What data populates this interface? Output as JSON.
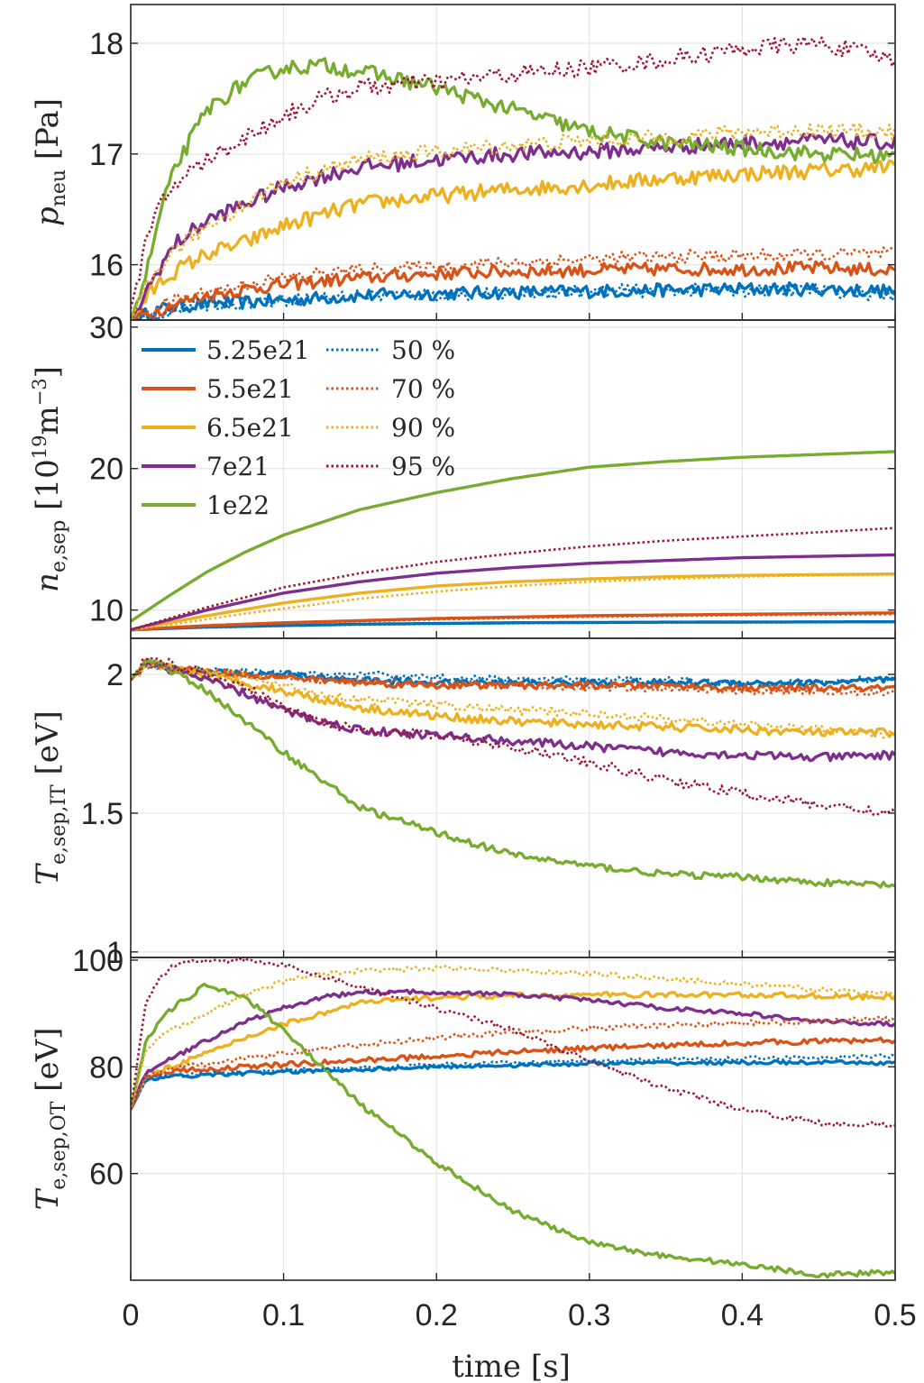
{
  "chart_data": [
    {
      "type": "line",
      "panel_id": "p_neu",
      "ylabel_main": "p",
      "ylabel_sub": "neu",
      "ylabel_unit": "[Pa]",
      "xlim": [
        0,
        0.5
      ],
      "ylim": [
        15.5,
        18.35
      ],
      "yticks": [
        16,
        17,
        18
      ],
      "x": [
        0,
        0.01,
        0.02,
        0.03,
        0.05,
        0.075,
        0.1,
        0.125,
        0.15,
        0.2,
        0.25,
        0.3,
        0.35,
        0.4,
        0.45,
        0.5
      ],
      "series": [
        {
          "name": "5.25e21",
          "color": "#0072BD",
          "style": "solid",
          "noise": 0.06,
          "values": [
            15.5,
            15.55,
            15.6,
            15.62,
            15.65,
            15.66,
            15.68,
            15.7,
            15.72,
            15.74,
            15.75,
            15.76,
            15.77,
            15.78,
            15.78,
            15.76
          ]
        },
        {
          "name": "5.5e21",
          "color": "#D95319",
          "style": "solid",
          "noise": 0.06,
          "values": [
            15.5,
            15.55,
            15.6,
            15.65,
            15.72,
            15.78,
            15.82,
            15.85,
            15.88,
            15.92,
            15.94,
            15.95,
            15.96,
            15.96,
            15.97,
            15.95
          ]
        },
        {
          "name": "6.5e21",
          "color": "#EDB120",
          "style": "solid",
          "noise": 0.07,
          "values": [
            15.5,
            15.7,
            15.85,
            15.95,
            16.1,
            16.2,
            16.35,
            16.45,
            16.55,
            16.62,
            16.68,
            16.72,
            16.78,
            16.82,
            16.85,
            16.88
          ]
        },
        {
          "name": "7e21",
          "color": "#7E2F8E",
          "style": "solid",
          "noise": 0.07,
          "values": [
            15.5,
            15.75,
            16.0,
            16.2,
            16.4,
            16.55,
            16.7,
            16.8,
            16.88,
            16.95,
            17.0,
            17.02,
            17.06,
            17.1,
            17.12,
            17.1
          ]
        },
        {
          "name": "1e22",
          "color": "#77AC30",
          "style": "solid",
          "noise": 0.07,
          "values": [
            15.5,
            15.9,
            16.5,
            16.9,
            17.4,
            17.65,
            17.78,
            17.8,
            17.75,
            17.6,
            17.4,
            17.2,
            17.1,
            17.05,
            17.0,
            16.98
          ]
        },
        {
          "name": "50 %",
          "color": "#0072BD",
          "style": "dotted",
          "noise": 0.06,
          "values": [
            15.5,
            15.52,
            15.56,
            15.6,
            15.64,
            15.66,
            15.68,
            15.7,
            15.72,
            15.73,
            15.74,
            15.76,
            15.77,
            15.77,
            15.77,
            15.72
          ]
        },
        {
          "name": "70 %",
          "color": "#D95319",
          "style": "dotted",
          "noise": 0.06,
          "values": [
            15.5,
            15.57,
            15.63,
            15.68,
            15.75,
            15.82,
            15.88,
            15.92,
            15.95,
            15.98,
            16.02,
            16.05,
            16.07,
            16.08,
            16.09,
            16.1
          ]
        },
        {
          "name": "90 %",
          "color": "#EDB120",
          "style": "dotted",
          "noise": 0.07,
          "values": [
            15.5,
            15.8,
            16.0,
            16.15,
            16.35,
            16.55,
            16.75,
            16.85,
            16.95,
            17.02,
            17.08,
            17.12,
            17.15,
            17.2,
            17.22,
            17.2
          ]
        },
        {
          "name": "95 %",
          "color": "#A2142F",
          "style": "dotted",
          "noise": 0.08,
          "values": [
            15.6,
            16.2,
            16.55,
            16.75,
            16.95,
            17.15,
            17.35,
            17.5,
            17.6,
            17.65,
            17.72,
            17.78,
            17.85,
            17.95,
            18.0,
            17.85
          ]
        }
      ]
    },
    {
      "type": "line",
      "panel_id": "n_e_sep",
      "ylabel_main": "n",
      "ylabel_sub": "e,sep",
      "ylabel_unit": "[10",
      "ylabel_exp": "19",
      "ylabel_unit2": "m",
      "ylabel_exp2": "−3",
      "ylabel_close": "]",
      "xlim": [
        0,
        0.5
      ],
      "ylim": [
        8,
        30.5
      ],
      "yticks": [
        10,
        20,
        30
      ],
      "x": [
        0,
        0.025,
        0.05,
        0.075,
        0.1,
        0.15,
        0.2,
        0.25,
        0.3,
        0.35,
        0.4,
        0.45,
        0.5
      ],
      "series": [
        {
          "name": "5.25e21",
          "color": "#0072BD",
          "style": "solid",
          "noise": 0,
          "values": [
            8.6,
            8.7,
            8.8,
            8.85,
            8.9,
            9.0,
            9.05,
            9.1,
            9.12,
            9.14,
            9.15,
            9.16,
            9.17
          ]
        },
        {
          "name": "5.5e21",
          "color": "#D95319",
          "style": "solid",
          "noise": 0,
          "values": [
            8.6,
            8.75,
            8.9,
            9.0,
            9.1,
            9.25,
            9.4,
            9.5,
            9.6,
            9.65,
            9.7,
            9.75,
            9.8
          ]
        },
        {
          "name": "6.5e21",
          "color": "#EDB120",
          "style": "solid",
          "noise": 0,
          "values": [
            8.6,
            9.1,
            9.6,
            10.05,
            10.5,
            11.2,
            11.7,
            12.0,
            12.2,
            12.35,
            12.45,
            12.5,
            12.55
          ]
        },
        {
          "name": "7e21",
          "color": "#7E2F8E",
          "style": "solid",
          "noise": 0,
          "values": [
            8.6,
            9.3,
            10.0,
            10.6,
            11.2,
            12.0,
            12.6,
            13.0,
            13.3,
            13.5,
            13.7,
            13.8,
            13.9
          ]
        },
        {
          "name": "1e22",
          "color": "#77AC30",
          "style": "solid",
          "noise": 0,
          "values": [
            9.2,
            11.0,
            12.7,
            14.1,
            15.3,
            17.1,
            18.3,
            19.3,
            20.1,
            20.5,
            20.8,
            21.0,
            21.2
          ]
        },
        {
          "name": "50 %",
          "color": "#0072BD",
          "style": "dotted",
          "noise": 0,
          "values": [
            8.6,
            8.68,
            8.76,
            8.82,
            8.88,
            8.96,
            9.02,
            9.06,
            9.09,
            9.11,
            9.12,
            9.13,
            9.14
          ]
        },
        {
          "name": "70 %",
          "color": "#D95319",
          "style": "dotted",
          "noise": 0,
          "values": [
            8.6,
            8.72,
            8.85,
            8.95,
            9.05,
            9.2,
            9.33,
            9.43,
            9.52,
            9.58,
            9.63,
            9.67,
            9.7
          ]
        },
        {
          "name": "90 %",
          "color": "#EDB120",
          "style": "dotted",
          "noise": 0,
          "values": [
            8.6,
            8.95,
            9.35,
            9.75,
            10.1,
            10.8,
            11.3,
            11.7,
            12.0,
            12.2,
            12.35,
            12.45,
            12.5
          ]
        },
        {
          "name": "95 %",
          "color": "#A2142F",
          "style": "dotted",
          "noise": 0,
          "values": [
            8.6,
            9.4,
            10.2,
            10.9,
            11.6,
            12.6,
            13.4,
            14.0,
            14.5,
            14.9,
            15.2,
            15.5,
            15.8
          ]
        }
      ]
    },
    {
      "type": "line",
      "panel_id": "T_e_sep_IT",
      "ylabel_main": "T",
      "ylabel_sub": "e,sep,IT",
      "ylabel_unit": "[eV]",
      "xlim": [
        0,
        0.5
      ],
      "ylim": [
        0.98,
        2.13
      ],
      "yticks": [
        1,
        1.5,
        2
      ],
      "x": [
        0,
        0.01,
        0.02,
        0.03,
        0.05,
        0.075,
        0.1,
        0.125,
        0.15,
        0.2,
        0.25,
        0.3,
        0.35,
        0.4,
        0.45,
        0.5
      ],
      "series": [
        {
          "name": "5.25e21",
          "color": "#0072BD",
          "style": "solid",
          "noise": 0.012,
          "values": [
            1.98,
            2.04,
            2.03,
            2.02,
            2.01,
            2.0,
            2.0,
            1.99,
            1.98,
            1.97,
            1.97,
            1.97,
            1.97,
            1.97,
            1.97,
            1.98
          ]
        },
        {
          "name": "5.5e21",
          "color": "#D95319",
          "style": "solid",
          "noise": 0.012,
          "values": [
            1.98,
            2.04,
            2.03,
            2.02,
            2.01,
            2.0,
            1.99,
            1.98,
            1.97,
            1.96,
            1.96,
            1.96,
            1.96,
            1.95,
            1.95,
            1.95
          ]
        },
        {
          "name": "6.5e21",
          "color": "#EDB120",
          "style": "solid",
          "noise": 0.015,
          "values": [
            1.98,
            2.04,
            2.03,
            2.02,
            2.0,
            1.97,
            1.94,
            1.91,
            1.88,
            1.85,
            1.83,
            1.82,
            1.81,
            1.8,
            1.79,
            1.79
          ]
        },
        {
          "name": "7e21",
          "color": "#7E2F8E",
          "style": "solid",
          "noise": 0.015,
          "values": [
            1.98,
            2.04,
            2.03,
            2.01,
            1.98,
            1.93,
            1.87,
            1.83,
            1.8,
            1.78,
            1.76,
            1.74,
            1.72,
            1.71,
            1.7,
            1.71
          ]
        },
        {
          "name": "1e22",
          "color": "#77AC30",
          "style": "solid",
          "noise": 0.012,
          "values": [
            1.98,
            2.05,
            2.04,
            2.0,
            1.94,
            1.83,
            1.72,
            1.62,
            1.52,
            1.43,
            1.35,
            1.31,
            1.28,
            1.27,
            1.25,
            1.24
          ]
        },
        {
          "name": "50 %",
          "color": "#0072BD",
          "style": "dotted",
          "noise": 0.012,
          "values": [
            1.98,
            2.03,
            2.03,
            2.02,
            2.01,
            2.01,
            2.0,
            2.0,
            2.0,
            1.99,
            1.98,
            1.98,
            1.98,
            1.97,
            1.97,
            1.99
          ]
        },
        {
          "name": "70 %",
          "color": "#D95319",
          "style": "dotted",
          "noise": 0.012,
          "values": [
            1.98,
            2.03,
            2.03,
            2.02,
            2.01,
            2.0,
            1.99,
            1.98,
            1.98,
            1.97,
            1.96,
            1.95,
            1.95,
            1.94,
            1.94,
            1.93
          ]
        },
        {
          "name": "90 %",
          "color": "#EDB120",
          "style": "dotted",
          "noise": 0.015,
          "values": [
            1.98,
            2.03,
            2.03,
            2.02,
            2.01,
            1.99,
            1.96,
            1.93,
            1.91,
            1.89,
            1.87,
            1.86,
            1.84,
            1.82,
            1.8,
            1.78
          ]
        },
        {
          "name": "95 %",
          "color": "#A2142F",
          "style": "dotted",
          "noise": 0.018,
          "values": [
            1.98,
            2.06,
            2.05,
            2.03,
            2.0,
            1.95,
            1.88,
            1.83,
            1.8,
            1.78,
            1.74,
            1.68,
            1.62,
            1.57,
            1.53,
            1.5
          ]
        }
      ]
    },
    {
      "type": "line",
      "panel_id": "T_e_sep_OT",
      "ylabel_main": "T",
      "ylabel_sub": "e,sep,OT",
      "ylabel_unit": "[eV]",
      "xlim": [
        0,
        0.5
      ],
      "ylim": [
        40,
        100.5
      ],
      "yticks": [
        60,
        80,
        100
      ],
      "x": [
        0,
        0.01,
        0.02,
        0.03,
        0.05,
        0.075,
        0.1,
        0.125,
        0.15,
        0.2,
        0.25,
        0.3,
        0.35,
        0.4,
        0.45,
        0.5
      ],
      "series": [
        {
          "name": "5.25e21",
          "color": "#0072BD",
          "style": "solid",
          "noise": 0.35,
          "values": [
            72,
            77.5,
            78.0,
            78.2,
            78.5,
            78.8,
            79.0,
            79.3,
            79.5,
            80.0,
            80.3,
            80.6,
            80.7,
            80.8,
            80.8,
            80.7
          ]
        },
        {
          "name": "5.5e21",
          "color": "#D95319",
          "style": "solid",
          "noise": 0.5,
          "values": [
            72,
            78.0,
            78.8,
            79.2,
            79.5,
            80.0,
            80.4,
            80.8,
            81.2,
            82.0,
            82.8,
            83.5,
            84.0,
            84.5,
            84.8,
            85.0
          ]
        },
        {
          "name": "6.5e21",
          "color": "#EDB120",
          "style": "solid",
          "noise": 0.5,
          "values": [
            72,
            78.5,
            79.5,
            80.5,
            82.5,
            85.5,
            88.0,
            90.0,
            92.0,
            93.0,
            93.3,
            93.5,
            93.5,
            93.5,
            93.3,
            93.0
          ]
        },
        {
          "name": "7e21",
          "color": "#7E2F8E",
          "style": "solid",
          "noise": 0.4,
          "values": [
            72,
            79.0,
            80.5,
            82.0,
            85.0,
            88.5,
            91.0,
            93.0,
            94.0,
            94.0,
            93.5,
            92.5,
            91.0,
            90.0,
            88.5,
            88.0
          ]
        },
        {
          "name": "1e22",
          "color": "#77AC30",
          "style": "solid",
          "noise": 0.5,
          "values": [
            72,
            85.0,
            89.0,
            91.5,
            95.5,
            93.0,
            87.0,
            80.0,
            73.0,
            62.0,
            53.0,
            47.0,
            44.5,
            43.0,
            41.0,
            41.5
          ]
        },
        {
          "name": "50 %",
          "color": "#0072BD",
          "style": "dotted",
          "noise": 0.35,
          "values": [
            72,
            77.8,
            78.2,
            78.4,
            78.7,
            79.0,
            79.3,
            79.6,
            79.8,
            80.4,
            80.8,
            81.2,
            81.4,
            81.6,
            81.8,
            82.0
          ]
        },
        {
          "name": "70 %",
          "color": "#D95319",
          "style": "dotted",
          "noise": 0.5,
          "values": [
            72,
            78.5,
            79.2,
            79.8,
            80.5,
            81.5,
            82.5,
            83.3,
            84.0,
            85.5,
            86.5,
            87.2,
            87.8,
            88.2,
            88.6,
            89.0
          ]
        },
        {
          "name": "90 %",
          "color": "#EDB120",
          "style": "dotted",
          "noise": 0.45,
          "values": [
            72,
            83.0,
            86.0,
            87.5,
            90.0,
            93.5,
            96.0,
            97.5,
            98.0,
            98.5,
            98.0,
            97.5,
            96.5,
            95.5,
            94.5,
            93.5
          ]
        },
        {
          "name": "95 %",
          "color": "#A2142F",
          "style": "dotted",
          "noise": 0.5,
          "values": [
            72,
            92.0,
            97.0,
            99.5,
            100.0,
            100.0,
            99.0,
            97.0,
            95.0,
            91.0,
            87.0,
            81.0,
            76.0,
            72.0,
            69.5,
            69.0
          ]
        }
      ]
    }
  ],
  "xaxis": {
    "label": "time [s]",
    "ticks": [
      "0",
      "0.1",
      "0.2",
      "0.3",
      "0.4",
      "0.5"
    ],
    "tick_values": [
      0,
      0.1,
      0.2,
      0.3,
      0.4,
      0.5
    ]
  },
  "legend": {
    "location": "top-left of second panel",
    "entries": [
      {
        "label": "5.25e21",
        "color": "#0072BD",
        "style": "solid"
      },
      {
        "label": "5.5e21",
        "color": "#D95319",
        "style": "solid"
      },
      {
        "label": "6.5e21",
        "color": "#EDB120",
        "style": "solid"
      },
      {
        "label": "7e21",
        "color": "#7E2F8E",
        "style": "solid"
      },
      {
        "label": "1e22",
        "color": "#77AC30",
        "style": "solid"
      },
      {
        "label": "50 %",
        "color": "#0072BD",
        "style": "dotted"
      },
      {
        "label": "70 %",
        "color": "#D95319",
        "style": "dotted"
      },
      {
        "label": "90 %",
        "color": "#EDB120",
        "style": "dotted"
      },
      {
        "label": "95 %",
        "color": "#A2142F",
        "style": "dotted"
      }
    ]
  },
  "grid": "on"
}
